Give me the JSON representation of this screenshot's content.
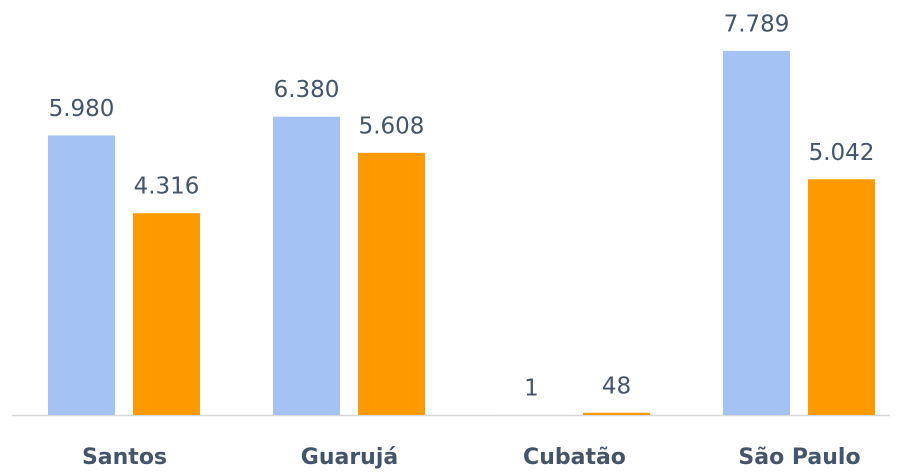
{
  "chart_data": {
    "type": "bar",
    "categories": [
      "Santos",
      "Guarujá",
      "Cubatão",
      "São Paulo"
    ],
    "series": [
      {
        "color": "#a4c2f4",
        "values": [
          5980,
          6380,
          1,
          7789
        ],
        "value_labels": [
          "5.980",
          "6.380",
          "1",
          "7.789"
        ]
      },
      {
        "color": "#ff9900",
        "values": [
          4316,
          5608,
          48,
          5042
        ],
        "value_labels": [
          "4.316",
          "5.608",
          "48",
          "5.042"
        ]
      }
    ],
    "ylim": [
      0,
      8000
    ]
  }
}
